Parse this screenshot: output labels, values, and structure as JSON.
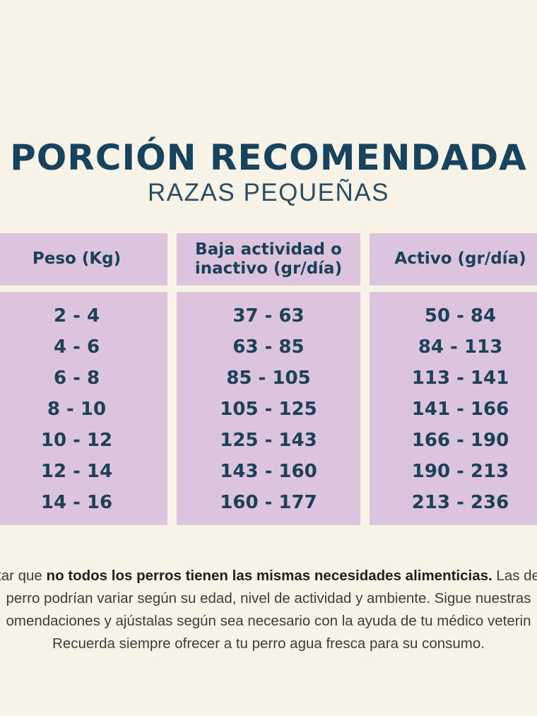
{
  "title": "PORCIÓN RECOMENDADA",
  "subtitle": "RAZAS PEQUEÑAS",
  "colors": {
    "background": "#f7f3e6",
    "table_cell_lavender": "#dcc3de",
    "heading_navy": "#17435e",
    "table_text_navy": "#1d4157",
    "footer_text": "#3d3d3d"
  },
  "table": {
    "columns": [
      "Peso (Kg)",
      "Baja actividad o inactivo (gr/día)",
      "Activo (gr/día)"
    ],
    "rows": [
      [
        "2 - 4",
        "37 - 63",
        "50 - 84"
      ],
      [
        "4 - 6",
        "63 - 85",
        "84 - 113"
      ],
      [
        "6 - 8",
        "85 - 105",
        "113 - 141"
      ],
      [
        "8 - 10",
        "105 - 125",
        "141 - 166"
      ],
      [
        "10 - 12",
        "125 - 143",
        "166 - 190"
      ],
      [
        "12 - 14",
        "143 - 160",
        "190 - 213"
      ],
      [
        "14 - 16",
        "160 - 177",
        "213 - 236"
      ]
    ]
  },
  "footer": {
    "line1_prefix": "tar que ",
    "line1_bold": "no todos los perros tienen las mismas necesidades alimenticias.",
    "line1_suffix": " Las de",
    "line2": "perro podrían variar según su edad, nivel de actividad y ambiente. Sigue nuestras",
    "line3": "omendaciones y ajústalas según sea necesario con la ayuda de tu médico veterin",
    "line4": "Recuerda siempre ofrecer a tu perro agua fresca para su consumo."
  }
}
